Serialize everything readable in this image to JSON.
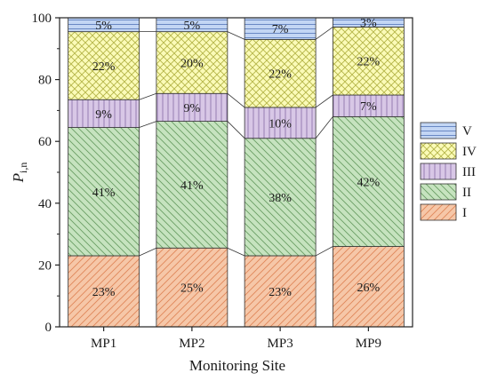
{
  "chart_data": {
    "type": "bar",
    "stacked": true,
    "xlabel": "Monitoring Site",
    "ylabel_main": "P",
    "ylabel_sub": "i,n",
    "ylim": [
      0,
      100
    ],
    "yticks": [
      "0",
      "20",
      "40",
      "60",
      "80",
      "100"
    ],
    "categories": [
      "MP1",
      "MP2",
      "MP3",
      "MP9"
    ],
    "series": [
      {
        "name": "I",
        "values": [
          23,
          25.5,
          23,
          26
        ],
        "labels": [
          "23%",
          "25%",
          "23%",
          "26%"
        ],
        "color": "#f6c7a8",
        "line": "#e0875a",
        "pattern": "diag-right"
      },
      {
        "name": "II",
        "values": [
          41.5,
          41,
          38,
          42
        ],
        "labels": [
          "41%",
          "41%",
          "38%",
          "42%"
        ],
        "color": "#c6e3bf",
        "line": "#6a9e64",
        "pattern": "diag-left"
      },
      {
        "name": "III",
        "values": [
          9,
          9,
          10,
          7
        ],
        "labels": [
          "9%",
          "9%",
          "10%",
          "7%"
        ],
        "color": "#d8c7e6",
        "line": "#8f76ab",
        "pattern": "vertical"
      },
      {
        "name": "IV",
        "values": [
          22,
          20,
          22,
          22
        ],
        "labels": [
          "22%",
          "20%",
          "22%",
          "22%"
        ],
        "color": "#fbfbb8",
        "line": "#b5b548",
        "pattern": "cross"
      },
      {
        "name": "V",
        "values": [
          4.5,
          4.5,
          7,
          3
        ],
        "labels": [
          "5%",
          "5%",
          "7%",
          "3%"
        ],
        "color": "#c3d6f4",
        "line": "#5f7fbf",
        "pattern": "horizontal"
      }
    ],
    "legend_position": "right",
    "connector_lines": true
  }
}
